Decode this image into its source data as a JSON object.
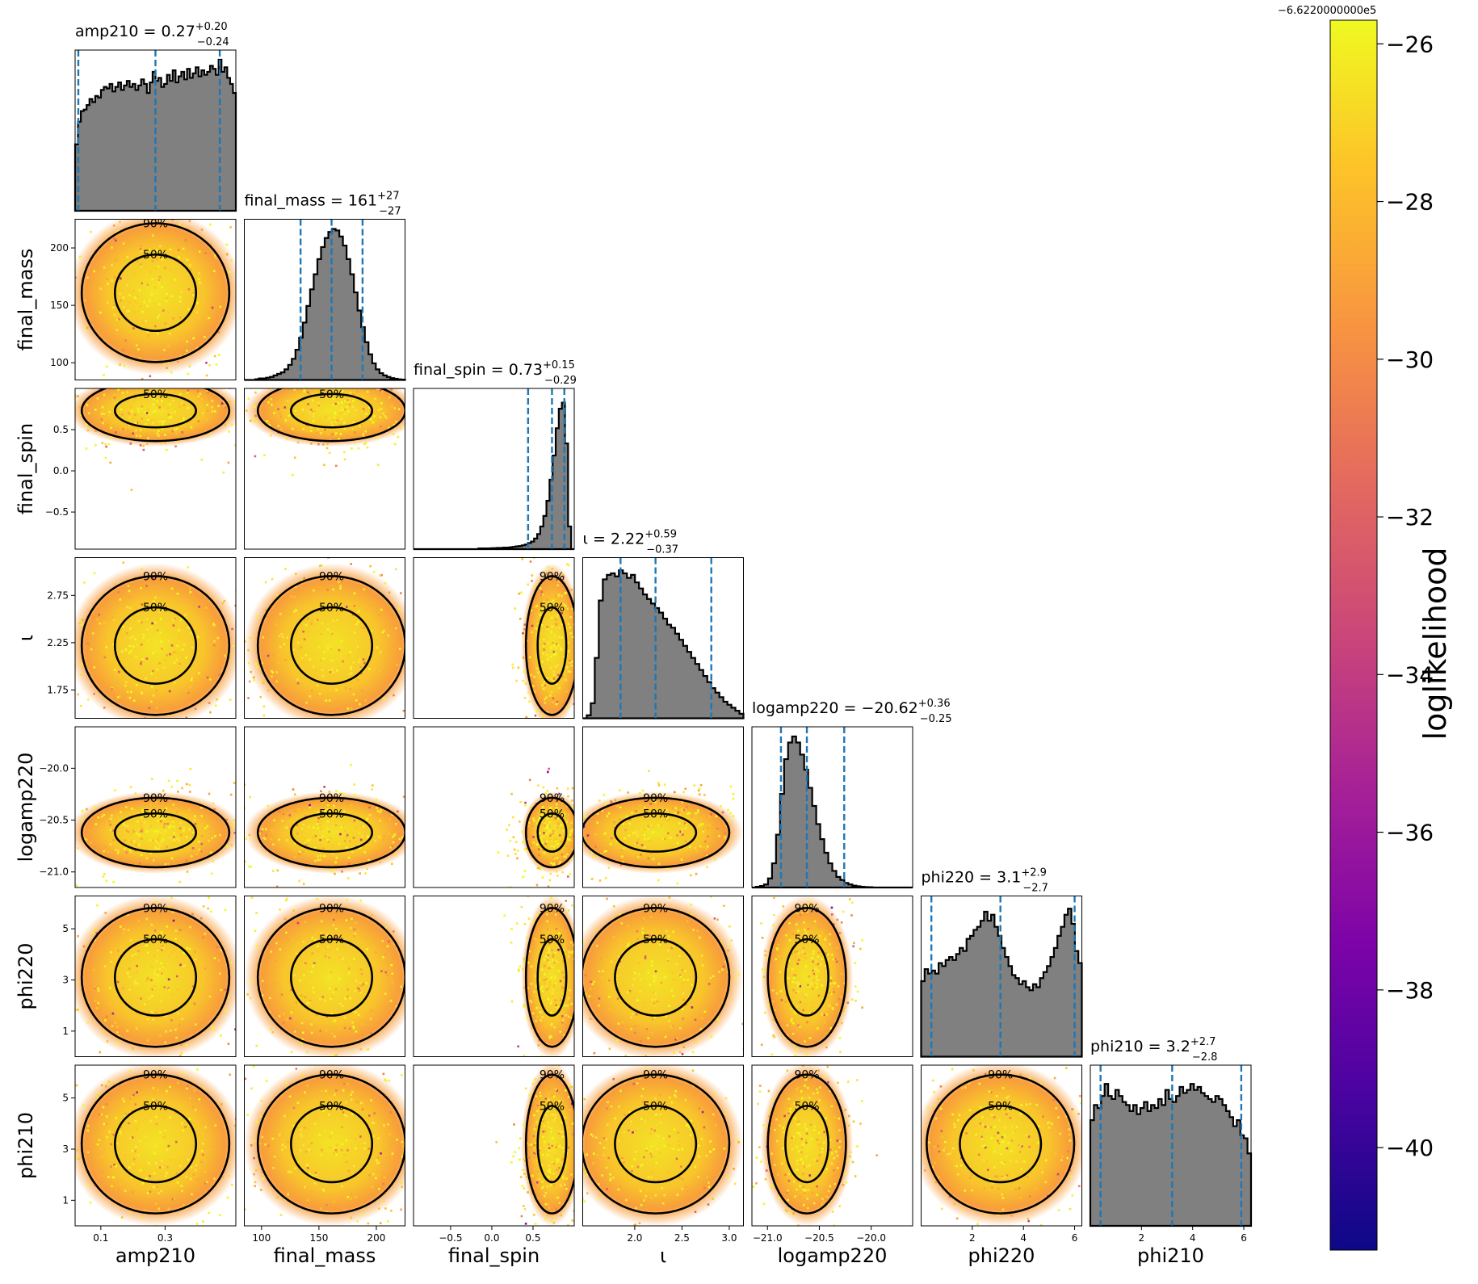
{
  "chart_data": {
    "type": "corner",
    "colormap": "plasma",
    "parameters": [
      {
        "name": "amp210",
        "label": "amp210",
        "lim": [
          0.02,
          0.52
        ],
        "ticks": [
          0.1,
          0.3
        ],
        "tick_labels": [
          "0.1",
          "0.3"
        ],
        "title": "amp210 = 0.27",
        "median": 0.27,
        "err_plus": "+0.20",
        "err_minus": "−0.24",
        "q_lo": 0.03,
        "q_hi": 0.47,
        "hist": [
          0.44,
          0.59,
          0.66,
          0.67,
          0.7,
          0.74,
          0.72,
          0.76,
          0.75,
          0.8,
          0.82,
          0.81,
          0.84,
          0.79,
          0.82,
          0.85,
          0.8,
          0.83,
          0.86,
          0.82,
          0.84,
          0.8,
          0.83,
          0.87,
          0.84,
          0.78,
          0.85,
          0.92,
          0.86,
          0.88,
          0.82,
          0.84,
          0.9,
          0.86,
          0.93,
          0.85,
          0.89,
          0.92,
          0.87,
          0.94,
          0.88,
          0.91,
          0.95,
          0.89,
          0.93,
          0.9,
          0.92,
          0.96,
          0.94,
          0.9,
          1.0,
          0.92,
          0.95,
          0.88,
          0.84,
          0.78
        ]
      },
      {
        "name": "final_mass",
        "label": "final_mass",
        "lim": [
          85,
          225
        ],
        "ticks": [
          100,
          150,
          200
        ],
        "tick_labels": [
          "100",
          "150",
          "200"
        ],
        "title": "final_mass = 161",
        "median": 161,
        "err_plus": "+27",
        "err_minus": "−27",
        "q_lo": 134,
        "q_hi": 188,
        "hist": [
          0.0,
          0.0,
          0.0,
          0.005,
          0.01,
          0.01,
          0.015,
          0.02,
          0.03,
          0.04,
          0.05,
          0.07,
          0.1,
          0.14,
          0.2,
          0.28,
          0.38,
          0.49,
          0.6,
          0.7,
          0.8,
          0.88,
          0.94,
          0.98,
          1.0,
          0.99,
          0.95,
          0.89,
          0.8,
          0.7,
          0.58,
          0.46,
          0.35,
          0.25,
          0.17,
          0.11,
          0.07,
          0.045,
          0.03,
          0.02,
          0.012,
          0.008,
          0.004,
          0.002
        ]
      },
      {
        "name": "final_spin",
        "label": "final_spin",
        "lim": [
          -0.95,
          1.0
        ],
        "ticks": [
          -0.5,
          0.0,
          0.5
        ],
        "tick_labels": [
          "−0.5",
          "0.0",
          "0.5"
        ],
        "title": "final_spin = 0.73",
        "median": 0.73,
        "err_plus": "+0.15",
        "err_minus": "−0.29",
        "q_lo": 0.44,
        "q_hi": 0.88,
        "hist": [
          0.0,
          0.0,
          0.0,
          0.0,
          0.0,
          0.0,
          0.0,
          0.0,
          0.0,
          0.0,
          0.0,
          0.0,
          0.0,
          0.0,
          0.0,
          0.0,
          0.0,
          0.0,
          0.0,
          0.0,
          0.0,
          0.005,
          0.005,
          0.005,
          0.005,
          0.006,
          0.007,
          0.008,
          0.008,
          0.01,
          0.01,
          0.012,
          0.015,
          0.018,
          0.02,
          0.025,
          0.03,
          0.04,
          0.05,
          0.07,
          0.1,
          0.15,
          0.22,
          0.32,
          0.46,
          0.62,
          0.8,
          0.93,
          0.97,
          0.7,
          0.15,
          0.0
        ]
      },
      {
        "name": "iota",
        "label": "ι",
        "lim": [
          1.45,
          3.15
        ],
        "ticks": [
          1.75,
          2.25,
          2.75
        ],
        "tick_labels": [
          "1.75",
          "2.25",
          "2.75"
        ],
        "xticks": [
          2.0,
          2.5,
          3.0
        ],
        "xtick_labels": [
          "2.0",
          "2.5",
          "3.0"
        ],
        "title": "ι = 2.22",
        "median": 2.22,
        "err_plus": "+0.59",
        "err_minus": "−0.37",
        "q_lo": 1.85,
        "q_hi": 2.81,
        "hist": [
          0.0,
          0.02,
          0.1,
          0.4,
          0.78,
          0.92,
          0.95,
          0.96,
          0.94,
          0.98,
          0.96,
          0.93,
          0.95,
          0.9,
          0.86,
          0.82,
          0.79,
          0.76,
          0.73,
          0.7,
          0.66,
          0.62,
          0.6,
          0.56,
          0.52,
          0.48,
          0.44,
          0.4,
          0.36,
          0.32,
          0.28,
          0.24,
          0.2,
          0.17,
          0.14,
          0.11,
          0.09,
          0.07,
          0.05,
          0.03
        ]
      },
      {
        "name": "logamp220",
        "label": "logamp220",
        "lim": [
          -21.15,
          -19.6
        ],
        "ticks": [
          -21.0,
          -20.5,
          -20.0
        ],
        "tick_labels": [
          "−21.0",
          "−20.5",
          "−20.0"
        ],
        "title": "logamp220 = −20.62",
        "median": -20.62,
        "err_plus": "+0.36",
        "err_minus": "−0.25",
        "q_lo": -20.87,
        "q_hi": -20.26,
        "hist": [
          0.0,
          0.005,
          0.01,
          0.02,
          0.06,
          0.16,
          0.35,
          0.62,
          0.85,
          0.96,
          1.0,
          0.96,
          0.88,
          0.78,
          0.66,
          0.54,
          0.42,
          0.32,
          0.23,
          0.16,
          0.11,
          0.07,
          0.05,
          0.03,
          0.02,
          0.012,
          0.008,
          0.005,
          0.003,
          0.002,
          0.0,
          0.0,
          0.0,
          0.0,
          0.0,
          0.0,
          0.0,
          0.0,
          0.0,
          0.0
        ]
      },
      {
        "name": "phi220",
        "label": "phi220",
        "lim": [
          0.0,
          6.283
        ],
        "ticks": [
          1,
          3,
          5
        ],
        "tick_labels": [
          "1",
          "3",
          "5"
        ],
        "xticks": [
          2,
          4,
          6
        ],
        "xtick_labels": [
          "2",
          "4",
          "6"
        ],
        "title": "phi220 = 3.1",
        "median": 3.1,
        "err_plus": "+2.9",
        "err_minus": "−2.7",
        "q_lo": 0.4,
        "q_hi": 6.0,
        "hist": [
          0.5,
          0.58,
          0.55,
          0.57,
          0.55,
          0.62,
          0.6,
          0.64,
          0.66,
          0.64,
          0.68,
          0.72,
          0.7,
          0.78,
          0.8,
          0.84,
          0.86,
          0.9,
          0.96,
          0.9,
          0.94,
          0.86,
          0.8,
          0.72,
          0.66,
          0.6,
          0.54,
          0.52,
          0.48,
          0.5,
          0.46,
          0.44,
          0.48,
          0.46,
          0.52,
          0.56,
          0.6,
          0.66,
          0.72,
          0.8,
          0.86,
          0.94,
          0.98,
          0.88,
          0.7,
          0.62
        ]
      },
      {
        "name": "phi210",
        "label": "phi210",
        "lim": [
          0.0,
          6.283
        ],
        "ticks": [
          1,
          3,
          5
        ],
        "tick_labels": [
          "1",
          "3",
          "5"
        ],
        "xticks": [
          2,
          4,
          6
        ],
        "xtick_labels": [
          "2",
          "4",
          "6"
        ],
        "title": "phi210 = 3.2",
        "median": 3.2,
        "err_plus": "+2.7",
        "err_minus": "−2.8",
        "q_lo": 0.4,
        "q_hi": 5.9,
        "hist": [
          0.7,
          0.8,
          0.78,
          0.86,
          0.94,
          0.86,
          0.84,
          0.9,
          0.86,
          0.82,
          0.8,
          0.76,
          0.8,
          0.74,
          0.78,
          0.82,
          0.76,
          0.8,
          0.78,
          0.84,
          0.8,
          0.9,
          0.84,
          0.82,
          0.86,
          0.92,
          0.88,
          0.9,
          0.94,
          0.9,
          0.92,
          0.88,
          0.86,
          0.84,
          0.82,
          0.86,
          0.84,
          0.8,
          0.76,
          0.72,
          0.66,
          0.7,
          0.6,
          0.58,
          0.48
        ]
      }
    ],
    "contour_labels": [
      "50%",
      "90%"
    ],
    "colorbar": {
      "label": "loglikelihood",
      "offset": "−6.6220000000e5",
      "range": [
        -41.3,
        -25.7
      ],
      "ticks": [
        -26,
        -28,
        -30,
        -32,
        -34,
        -36,
        -38,
        -40
      ],
      "tick_labels": [
        "−26",
        "−28",
        "−30",
        "−32",
        "−34",
        "−36",
        "−38",
        "−40"
      ]
    },
    "colors": {
      "hist_fill": "#808080",
      "hist_edge": "#000000",
      "quantile_line": "#1f77b4",
      "contour": "#000000"
    }
  }
}
